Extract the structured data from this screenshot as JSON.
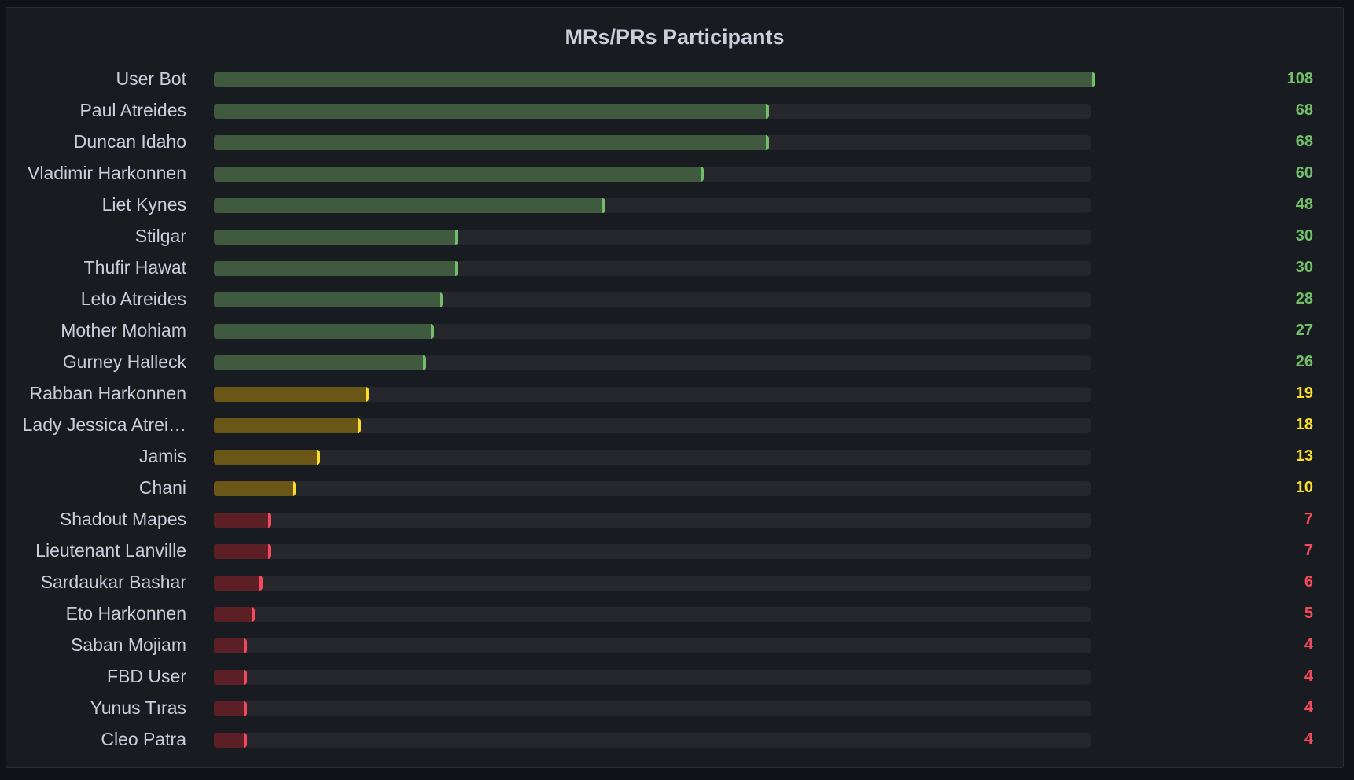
{
  "chart_data": {
    "type": "bar",
    "orientation": "horizontal",
    "title": "MRs/PRs Participants",
    "max": 108,
    "categories": [
      "User Bot",
      "Paul Atreides",
      "Duncan Idaho",
      "Vladimir Harkonnen",
      "Liet Kynes",
      "Stilgar",
      "Thufir Hawat",
      "Leto Atreides",
      "Mother Mohiam",
      "Gurney Halleck",
      "Rabban Harkonnen",
      "Lady Jessica Atrei…",
      "Jamis",
      "Chani",
      "Shadout Mapes",
      "Lieutenant Lanville",
      "Sardaukar Bashar",
      "Eto Harkonnen",
      "Saban Mojiam",
      "FBD User",
      "Yunus Tıras",
      "Cleo Patra"
    ],
    "values": [
      108,
      68,
      68,
      60,
      48,
      30,
      30,
      28,
      27,
      26,
      19,
      18,
      13,
      10,
      7,
      7,
      6,
      5,
      4,
      4,
      4,
      4
    ],
    "thresholds": [
      {
        "min": 20,
        "fill": "#3f5a3f",
        "accent": "#73bf69"
      },
      {
        "min": 10,
        "fill": "#6a5718",
        "accent": "#fade2a"
      },
      {
        "min": 0,
        "fill": "#5c1f25",
        "accent": "#f2495c"
      }
    ]
  }
}
